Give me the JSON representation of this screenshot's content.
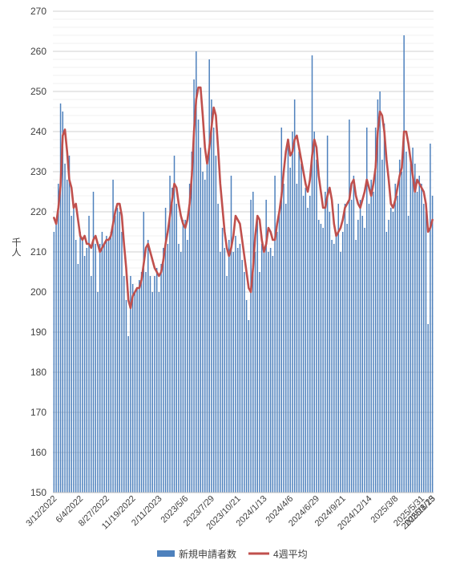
{
  "chart_data": {
    "type": "bar",
    "ylabel": "千人",
    "ylim": [
      150,
      270
    ],
    "ystep": 10,
    "grid": true,
    "legend_placement": "bottom",
    "x_labels": [
      "3/12/2022",
      "6/4/2022",
      "8/27/2022",
      "11/19/2022",
      "2/11/2023",
      "2023/5/6",
      "2023/7/29",
      "2023/10/21",
      "2024/1/13",
      "2024/4/6",
      "2024/6/29",
      "2024/9/21",
      "2024/12/14",
      "2025/3/8",
      "2025/5/31",
      "2025/8/23",
      "2025/11/15"
    ],
    "series": [
      {
        "name": "新規申請者数",
        "color": "#4e81bd",
        "values": [
          215,
          217,
          227,
          247,
          245,
          232,
          228,
          234,
          219,
          222,
          213,
          207,
          215,
          213,
          209,
          211,
          219,
          204,
          225,
          212,
          200,
          212,
          215,
          212,
          214,
          213,
          215,
          228,
          219,
          221,
          220,
          215,
          204,
          198,
          189,
          204,
          202,
          200,
          201,
          203,
          205,
          220,
          205,
          213,
          204,
          200,
          204,
          206,
          200,
          207,
          211,
          221,
          212,
          229,
          226,
          234,
          222,
          212,
          210,
          218,
          218,
          213,
          227,
          235,
          253,
          260,
          243,
          236,
          230,
          228,
          234,
          258,
          248,
          241,
          234,
          222,
          210,
          216,
          211,
          204,
          213,
          229,
          210,
          214,
          211,
          212,
          208,
          205,
          198,
          193,
          223,
          225,
          210,
          219,
          205,
          212,
          211,
          223,
          210,
          211,
          209,
          229,
          215,
          220,
          241,
          227,
          222,
          238,
          231,
          240,
          248,
          227,
          235,
          232,
          224,
          226,
          221,
          224,
          259,
          240,
          233,
          218,
          217,
          216,
          225,
          239,
          220,
          213,
          212,
          214,
          222,
          210,
          215,
          222,
          217,
          243,
          223,
          229,
          213,
          218,
          223,
          219,
          216,
          241,
          222,
          228,
          225,
          241,
          248,
          250,
          233,
          242,
          215,
          218,
          221,
          220,
          227,
          224,
          233,
          230,
          264,
          235,
          219,
          232,
          236,
          232,
          225,
          229,
          227,
          222,
          220,
          192,
          237,
          224
        ]
      },
      {
        "name": "4週平均",
        "color": "#c0504d",
        "values": [
          218.5,
          217.0,
          221.0,
          226.5,
          239.0,
          240.5,
          235.0,
          228.0,
          226.0,
          221.0,
          222.0,
          218.0,
          214.0,
          213.0,
          214.0,
          212.0,
          212.0,
          211.0,
          213.0,
          214.0,
          212.0,
          210.0,
          211.0,
          212.0,
          213.0,
          213.0,
          214.0,
          217.0,
          220.0,
          222.0,
          222.0,
          219.0,
          212.0,
          206.0,
          198.0,
          196.0,
          199.0,
          200.0,
          201.0,
          201.0,
          203.0,
          207.0,
          211.0,
          212.0,
          210.0,
          208.0,
          206.0,
          205.0,
          204.0,
          205.0,
          208.0,
          212.0,
          215.0,
          219.0,
          223.0,
          227.0,
          226.0,
          222.0,
          219.0,
          217.0,
          216.0,
          218.0,
          222.0,
          229.0,
          240.0,
          248.0,
          251.0,
          251.0,
          244.0,
          236.0,
          232.0,
          236.0,
          241.0,
          246.0,
          244.0,
          236.0,
          227.0,
          221.0,
          215.0,
          211.0,
          209.0,
          211.0,
          214.0,
          219.0,
          218.0,
          217.0,
          213.0,
          209.0,
          205.0,
          201.0,
          200.0,
          206.0,
          214.0,
          219.0,
          218.0,
          213.0,
          210.0,
          212.0,
          216.0,
          215.0,
          213.0,
          213.0,
          217.0,
          220.0,
          224.0,
          230.0,
          235.0,
          238.0,
          234.0,
          235.0,
          238.0,
          239.0,
          236.0,
          233.0,
          230.0,
          227.0,
          225.0,
          228.0,
          234.0,
          238.0,
          236.0,
          229.0,
          225.0,
          221.0,
          221.0,
          224.0,
          226.0,
          223.0,
          217.0,
          214.0,
          215.0,
          216.0,
          218.0,
          221.0,
          222.0,
          223.0,
          227.0,
          228.0,
          224.0,
          222.0,
          221.0,
          223.0,
          225.0,
          228.0,
          226.0,
          224.0,
          227.0,
          231.0,
          240.0,
          245.0,
          244.0,
          240.0,
          233.0,
          228.0,
          222.0,
          221.0,
          223.0,
          226.0,
          229.0,
          231.0,
          240.0,
          240.0,
          237.0,
          233.0,
          229.0,
          225.0,
          228.0,
          227.0,
          226.0,
          225.0,
          222.0,
          215.0,
          216.0,
          218.0
        ]
      }
    ]
  }
}
